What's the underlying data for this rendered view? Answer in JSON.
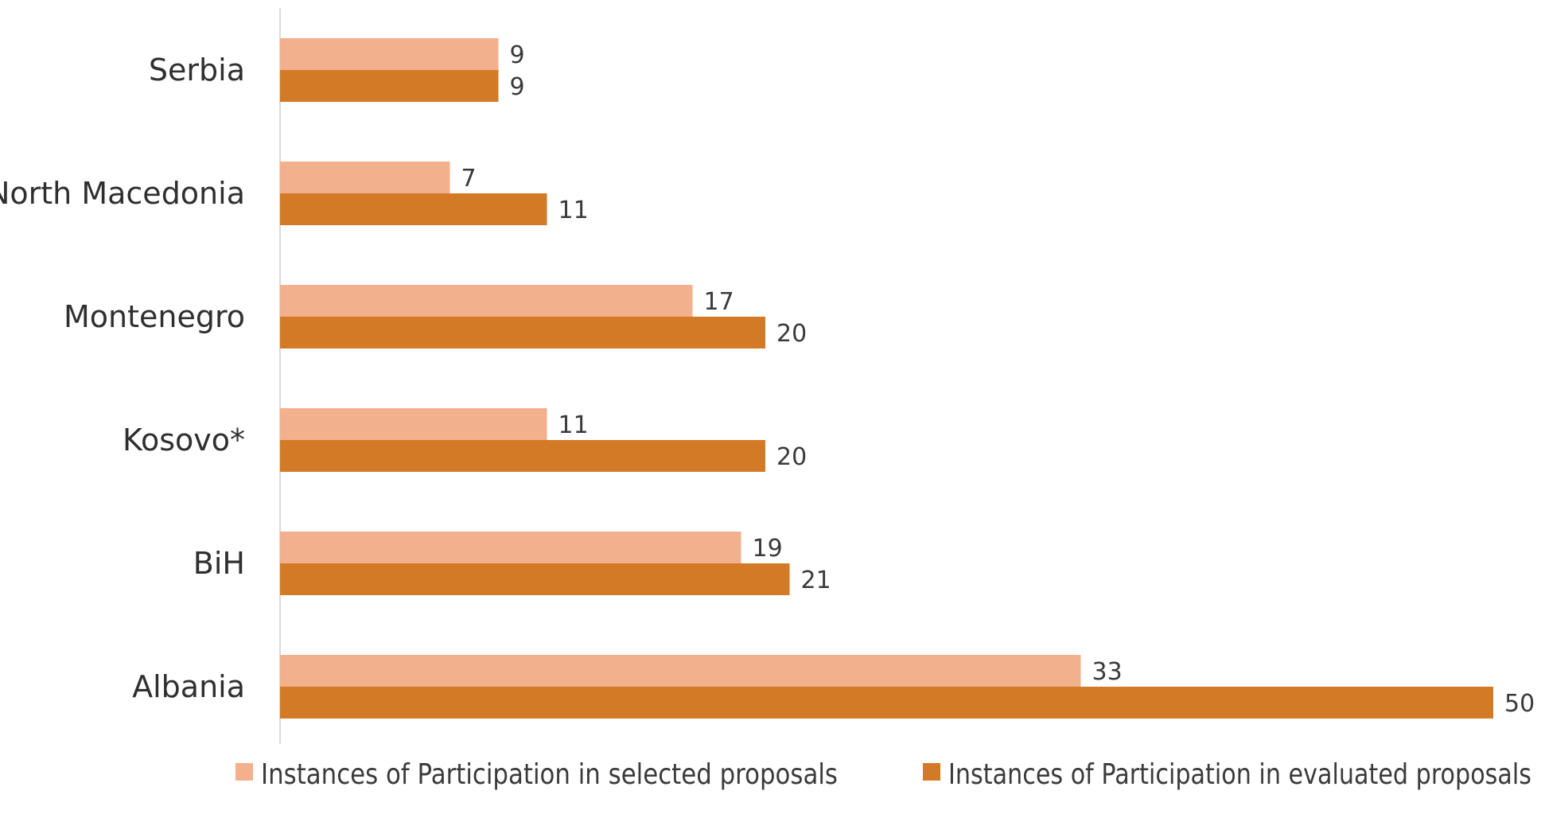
{
  "chart_data": {
    "type": "bar",
    "orientation": "horizontal",
    "categories": [
      "Serbia",
      "North Macedonia",
      "Montenegro",
      "Kosovo*",
      "BiH",
      "Albania"
    ],
    "series": [
      {
        "name": "Instances of Participation in selected proposals",
        "values": [
          9,
          7,
          17,
          11,
          19,
          33
        ],
        "color": "#f2b08c"
      },
      {
        "name": "Instances of Participation in evaluated proposals",
        "values": [
          9,
          11,
          20,
          20,
          21,
          50
        ],
        "color": "#d37a27"
      }
    ],
    "title": "",
    "xlabel": "",
    "ylabel": "",
    "xlim": [
      0,
      50
    ],
    "grid": false,
    "legend_position": "bottom",
    "axis_color": "#d9d9d9"
  }
}
